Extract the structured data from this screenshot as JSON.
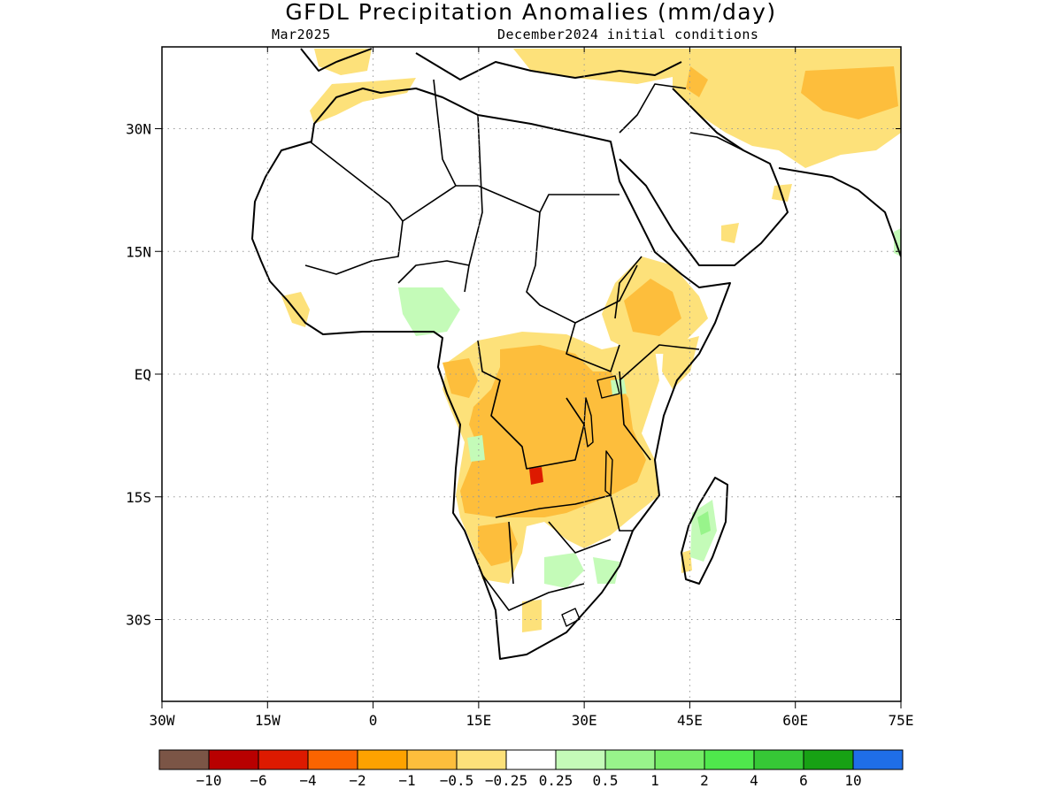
{
  "map": {
    "title": "GFDL Precipitation Anomalies (mm/day)",
    "subtitle_left": "Mar2025",
    "subtitle_right": "December2024 initial conditions",
    "lon_ticks": [
      "30W",
      "15W",
      "0",
      "15E",
      "30E",
      "45E",
      "60E",
      "75E"
    ],
    "lat_ticks": [
      "30N",
      "15N",
      "EQ",
      "15S",
      "30S"
    ],
    "extent": {
      "lon_min": -30,
      "lon_max": 75,
      "lat_min": -40,
      "lat_max": 40
    },
    "projection": "cylindrical",
    "gridlines": "dotted",
    "boundaries": "country borders"
  },
  "legend": {
    "colors": [
      "#7b5546",
      "#b80000",
      "#dd1a00",
      "#fb6400",
      "#fda200",
      "#fdbe3c",
      "#fde17a",
      "#ffffff",
      "#c4fbb8",
      "#98f48b",
      "#75ec66",
      "#4fe84c",
      "#36c836",
      "#17a114",
      "#1f6ee8"
    ],
    "labels": [
      "−10",
      "−6",
      "−4",
      "−2",
      "−1",
      "−0.5",
      "−0.25",
      "0.25",
      "0.5",
      "1",
      "2",
      "4",
      "6",
      "10"
    ]
  },
  "colors": {
    "light_orange": "#fde17a",
    "orange": "#fdbe3c",
    "dark_orange": "#fda200",
    "red": "#dd1a00",
    "light_green": "#c4fbb8",
    "green": "#98f48b"
  }
}
